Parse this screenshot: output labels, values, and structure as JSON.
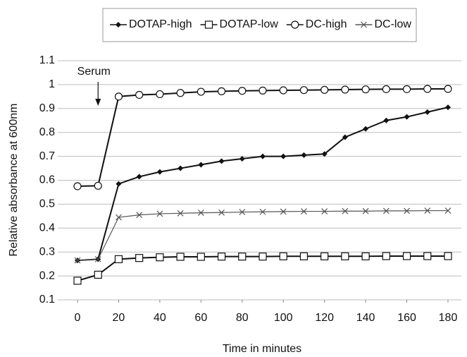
{
  "chart_data": {
    "type": "line",
    "x_label": "Time in minutes",
    "y_label": "Relative absorbance at 600nm",
    "x": [
      0,
      10,
      20,
      30,
      40,
      50,
      60,
      70,
      80,
      90,
      100,
      110,
      120,
      130,
      140,
      150,
      160,
      170,
      180
    ],
    "series": [
      {
        "name": "DOTAP-high",
        "color": "#111111",
        "marker": "diamond",
        "values": [
          0.265,
          0.27,
          0.585,
          0.615,
          0.635,
          0.65,
          0.665,
          0.68,
          0.69,
          0.7,
          0.7,
          0.705,
          0.71,
          0.78,
          0.815,
          0.85,
          0.865,
          0.885,
          0.905
        ]
      },
      {
        "name": "DOTAP-low",
        "color": "#111111",
        "marker": "square",
        "values": [
          0.18,
          0.205,
          0.27,
          0.275,
          0.278,
          0.28,
          0.28,
          0.281,
          0.281,
          0.281,
          0.282,
          0.282,
          0.282,
          0.282,
          0.282,
          0.283,
          0.283,
          0.283,
          0.283
        ]
      },
      {
        "name": "DC-high",
        "color": "#111111",
        "marker": "circle",
        "values": [
          0.575,
          0.577,
          0.95,
          0.957,
          0.96,
          0.965,
          0.97,
          0.972,
          0.974,
          0.975,
          0.976,
          0.977,
          0.978,
          0.979,
          0.98,
          0.981,
          0.981,
          0.982,
          0.982
        ]
      },
      {
        "name": "DC-low",
        "color": "#555555",
        "marker": "x",
        "values": [
          0.265,
          0.27,
          0.445,
          0.455,
          0.46,
          0.462,
          0.464,
          0.465,
          0.467,
          0.468,
          0.469,
          0.47,
          0.47,
          0.471,
          0.471,
          0.472,
          0.472,
          0.473,
          0.473
        ]
      }
    ],
    "xlim": [
      0,
      180
    ],
    "xticks": [
      0,
      20,
      40,
      60,
      80,
      100,
      120,
      140,
      160,
      180
    ],
    "ylim": [
      0.1,
      1.1
    ],
    "yticks": [
      0.1,
      0.2,
      0.3,
      0.4,
      0.5,
      0.6,
      0.7,
      0.8,
      0.9,
      1,
      1.1
    ],
    "grid": true,
    "annotations": [
      {
        "text": "Serum",
        "x": 10
      }
    ]
  }
}
